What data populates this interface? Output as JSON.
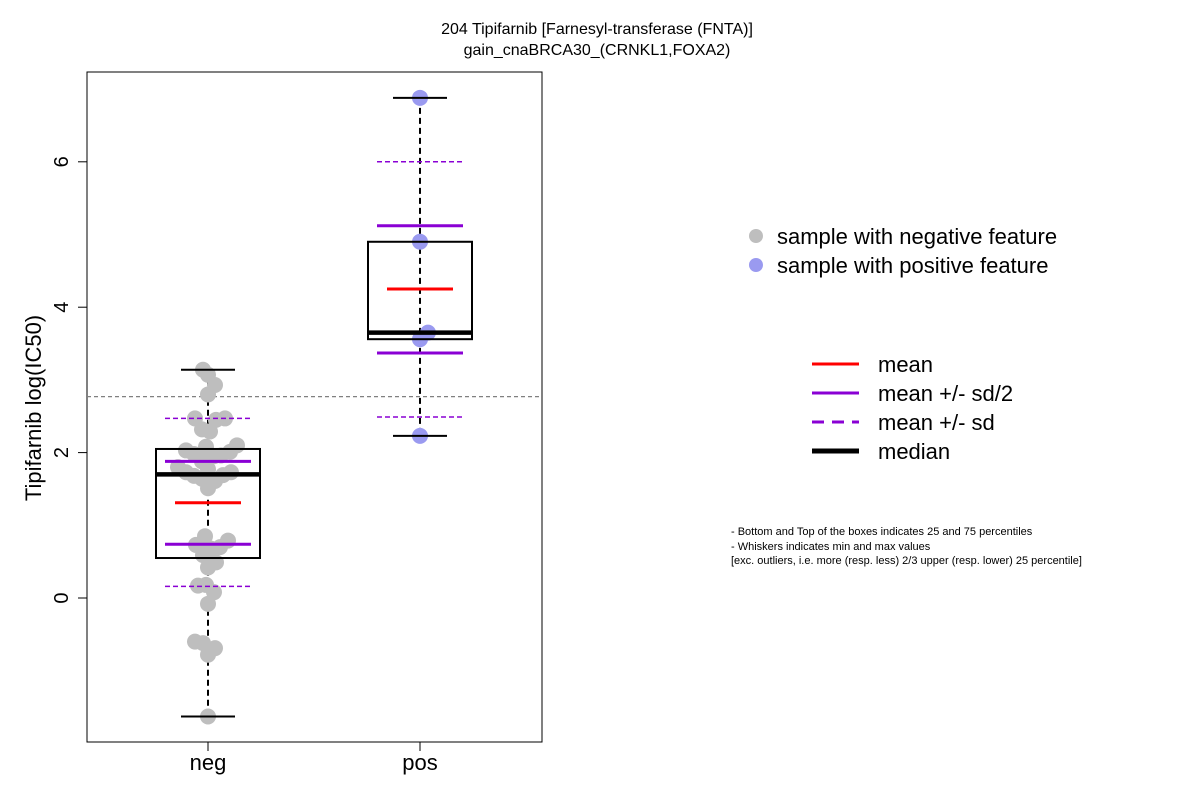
{
  "chart_data": {
    "type": "boxplot",
    "title_line1": "204 Tipifarnib [Farnesyl-transferase (FNTA)]",
    "title_line2": "gain_cnaBRCA30_(CRNKL1,FOXA2)",
    "ylabel": "Tipifarnib log(IC50)",
    "xlabel": "",
    "categories": [
      "neg",
      "pos"
    ],
    "y_ticks": [
      0,
      2,
      4,
      6
    ],
    "ylim": [
      -1.9,
      7.3
    ],
    "reference_line": 2.77,
    "groups": [
      {
        "name": "neg",
        "min": -1.63,
        "q1": 0.55,
        "median": 1.7,
        "q3": 2.05,
        "max": 3.14,
        "mean": 1.31,
        "mean_plus_half_sd": 1.88,
        "mean_minus_half_sd": 0.74,
        "mean_plus_sd": 2.47,
        "mean_minus_sd": 0.16,
        "points": [
          {
            "x": -0.1,
            "y": 3.14
          },
          {
            "x": 0.0,
            "y": 3.07
          },
          {
            "x": 0.14,
            "y": 2.93
          },
          {
            "x": 0.0,
            "y": 2.8
          },
          {
            "x": -0.26,
            "y": 2.47
          },
          {
            "x": 0.16,
            "y": 2.45
          },
          {
            "x": 0.34,
            "y": 2.47
          },
          {
            "x": -0.12,
            "y": 2.32
          },
          {
            "x": 0.04,
            "y": 2.29
          },
          {
            "x": -0.04,
            "y": 2.08
          },
          {
            "x": 0.58,
            "y": 2.1
          },
          {
            "x": -0.44,
            "y": 2.03
          },
          {
            "x": -0.28,
            "y": 1.98
          },
          {
            "x": 0.12,
            "y": 1.95
          },
          {
            "x": 0.26,
            "y": 1.96
          },
          {
            "x": 0.44,
            "y": 2.01
          },
          {
            "x": -0.6,
            "y": 1.8
          },
          {
            "x": -0.12,
            "y": 1.88
          },
          {
            "x": 0.0,
            "y": 1.77
          },
          {
            "x": -0.44,
            "y": 1.73
          },
          {
            "x": -0.28,
            "y": 1.68
          },
          {
            "x": -0.12,
            "y": 1.64
          },
          {
            "x": 0.14,
            "y": 1.61
          },
          {
            "x": 0.3,
            "y": 1.69
          },
          {
            "x": 0.46,
            "y": 1.73
          },
          {
            "x": 0.0,
            "y": 1.51
          },
          {
            "x": -0.06,
            "y": 0.85
          },
          {
            "x": 0.4,
            "y": 0.79
          },
          {
            "x": -0.24,
            "y": 0.73
          },
          {
            "x": -0.1,
            "y": 0.59
          },
          {
            "x": 0.06,
            "y": 0.68
          },
          {
            "x": 0.24,
            "y": 0.7
          },
          {
            "x": 0.16,
            "y": 0.49
          },
          {
            "x": 0.0,
            "y": 0.42
          },
          {
            "x": -0.2,
            "y": 0.17
          },
          {
            "x": -0.04,
            "y": 0.18
          },
          {
            "x": 0.12,
            "y": 0.08
          },
          {
            "x": 0.0,
            "y": -0.08
          },
          {
            "x": -0.26,
            "y": -0.6
          },
          {
            "x": -0.1,
            "y": -0.62
          },
          {
            "x": 0.14,
            "y": -0.69
          },
          {
            "x": 0.0,
            "y": -0.78
          },
          {
            "x": 0.0,
            "y": -1.63
          }
        ]
      },
      {
        "name": "pos",
        "min": 2.23,
        "q1": 3.56,
        "median": 3.65,
        "q3": 4.9,
        "max": 6.88,
        "mean": 4.25,
        "mean_plus_half_sd": 5.12,
        "mean_minus_half_sd": 3.37,
        "mean_plus_sd": 6.0,
        "mean_minus_sd": 2.49,
        "points": [
          {
            "x": 0.0,
            "y": 6.88
          },
          {
            "x": 0.0,
            "y": 4.9
          },
          {
            "x": 0.16,
            "y": 3.65
          },
          {
            "x": 0.0,
            "y": 3.56
          },
          {
            "x": 0.0,
            "y": 2.23
          }
        ]
      }
    ],
    "legend_points": [
      {
        "label": "sample with negative feature",
        "color": "#bebebe"
      },
      {
        "label": "sample with positive feature",
        "color": "#9a9af0"
      }
    ],
    "legend_lines": [
      {
        "label": "mean",
        "color": "#ff0000",
        "style": "solid"
      },
      {
        "label": "mean +/- sd/2",
        "color": "#8a00d4",
        "style": "solid"
      },
      {
        "label": "mean +/- sd",
        "color": "#8a00d4",
        "style": "dashed"
      },
      {
        "label": "median",
        "color": "#000000",
        "style": "solid-thick"
      }
    ],
    "colors": {
      "negative_point": "#bebebe",
      "positive_point": "#9a9af0",
      "mean": "#ff0000",
      "sd": "#8a00d4",
      "median": "#000000",
      "reference_line": "#808080"
    }
  },
  "notes": [
    "- Bottom and Top of the boxes indicates 25 and 75 percentiles",
    "- Whiskers indicates min and max values",
    "[exc. outliers, i.e. more (resp. less) 2/3 upper (resp. lower) 25 percentile]"
  ]
}
